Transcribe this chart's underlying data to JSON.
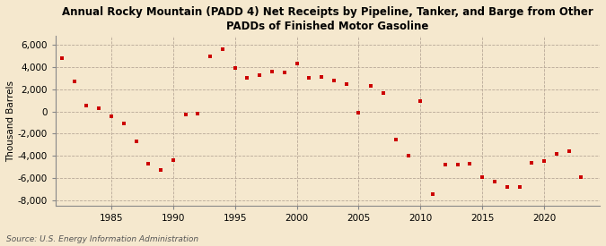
{
  "title": "Annual Rocky Mountain (PADD 4) Net Receipts by Pipeline, Tanker, and Barge from Other\nPADDs of Finished Motor Gasoline",
  "ylabel": "Thousand Barrels",
  "source": "Source: U.S. Energy Information Administration",
  "background_color": "#f5e8ce",
  "marker_color": "#cc0000",
  "years": [
    1981,
    1982,
    1983,
    1984,
    1985,
    1986,
    1987,
    1988,
    1989,
    1990,
    1991,
    1992,
    1993,
    1994,
    1995,
    1996,
    1997,
    1998,
    1999,
    2000,
    2001,
    2002,
    2003,
    2004,
    2005,
    2006,
    2007,
    2008,
    2009,
    2010,
    2011,
    2012,
    2013,
    2014,
    2015,
    2016,
    2017,
    2018,
    2019,
    2020,
    2021,
    2022,
    2023
  ],
  "values": [
    4800,
    2700,
    500,
    300,
    -400,
    -1100,
    -2700,
    -4700,
    -5300,
    -4400,
    -300,
    -200,
    5000,
    5600,
    3900,
    3000,
    3300,
    3600,
    3500,
    4300,
    3000,
    3100,
    2800,
    2500,
    -100,
    2300,
    1700,
    -2500,
    -4000,
    900,
    -7500,
    -4800,
    -4800,
    -4700,
    -5900,
    -6300,
    -6800,
    -6800,
    -4600,
    -4500,
    -3800,
    -3600,
    -5900
  ],
  "ylim": [
    -8500,
    6800
  ],
  "yticks": [
    -8000,
    -6000,
    -4000,
    -2000,
    0,
    2000,
    4000,
    6000
  ],
  "xlim": [
    1980.5,
    2024.5
  ],
  "xticks": [
    1985,
    1990,
    1995,
    2000,
    2005,
    2010,
    2015,
    2020
  ]
}
